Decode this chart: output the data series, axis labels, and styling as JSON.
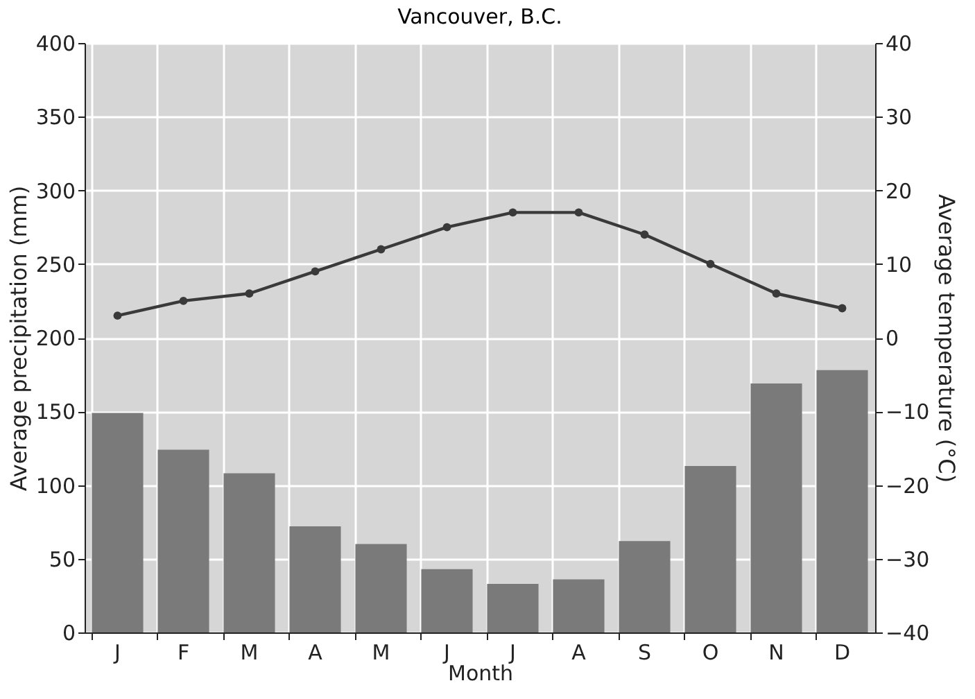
{
  "chart_data": {
    "type": "bar",
    "title": "Vancouver, B.C.",
    "xlabel": "Month",
    "ylabel": "Average precipitation (mm)",
    "y2label": "Average temperature (°C)",
    "categories": [
      "J",
      "F",
      "M",
      "A",
      "M",
      "J",
      "J",
      "A",
      "S",
      "O",
      "N",
      "D"
    ],
    "series": [
      {
        "color": "#7a7a7a",
        "values": [
          149,
          124,
          108,
          72,
          60,
          43,
          33,
          36,
          62,
          113,
          169,
          178
        ]
      },
      {
        "type": "line",
        "axis": "y2",
        "color": "#3a3a3a",
        "marker": "circle",
        "values": [
          3,
          5,
          6,
          9,
          12,
          15,
          17,
          17,
          14,
          10,
          6,
          4
        ]
      }
    ],
    "ylim": [
      0,
      400
    ],
    "yticks": [
      0,
      50,
      100,
      150,
      200,
      250,
      300,
      350,
      400
    ],
    "y2lim": [
      -40,
      40
    ],
    "y2ticks": [
      -40,
      -30,
      -20,
      -10,
      0,
      10,
      20,
      30,
      40
    ],
    "grid": true
  }
}
